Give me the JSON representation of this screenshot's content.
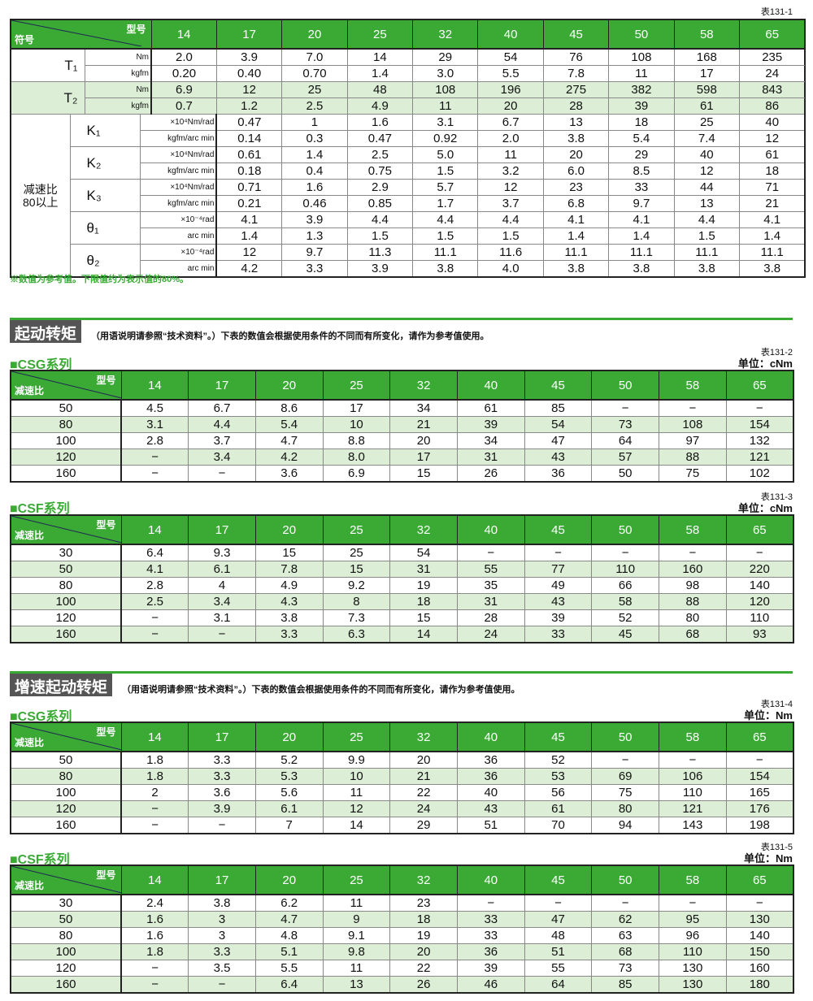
{
  "table1": {
    "id": "表131-1",
    "corner_top": "型号",
    "corner_bottom": "符号",
    "models": [
      "14",
      "17",
      "20",
      "25",
      "32",
      "40",
      "45",
      "50",
      "58",
      "65"
    ],
    "groups": [
      {
        "symbol": "T₁",
        "shaded": false,
        "rows": [
          {
            "unit": "Nm",
            "values": [
              "2.0",
              "3.9",
              "7.0",
              "14",
              "29",
              "54",
              "76",
              "108",
              "168",
              "235"
            ]
          },
          {
            "unit": "kgfm",
            "values": [
              "0.20",
              "0.40",
              "0.70",
              "1.4",
              "3.0",
              "5.5",
              "7.8",
              "11",
              "17",
              "24"
            ]
          }
        ]
      },
      {
        "symbol": "T₂",
        "shaded": true,
        "rows": [
          {
            "unit": "Nm",
            "values": [
              "6.9",
              "12",
              "25",
              "48",
              "108",
              "196",
              "275",
              "382",
              "598",
              "843"
            ]
          },
          {
            "unit": "kgfm",
            "values": [
              "0.7",
              "1.2",
              "2.5",
              "4.9",
              "11",
              "20",
              "28",
              "39",
              "61",
              "86"
            ]
          }
        ]
      },
      {
        "symbol": "K₁",
        "rows": [
          {
            "unit": "×10⁴Nm/rad",
            "values": [
              "0.47",
              "1",
              "1.6",
              "3.1",
              "6.7",
              "13",
              "18",
              "25",
              "40",
              "54"
            ]
          },
          {
            "unit": "kgfm/arc min",
            "values": [
              "0.14",
              "0.3",
              "0.47",
              "0.92",
              "2.0",
              "3.8",
              "5.4",
              "7.4",
              "12",
              "16"
            ]
          }
        ]
      },
      {
        "symbol": "K₂",
        "rows": [
          {
            "unit": "×10⁴Nm/rad",
            "values": [
              "0.61",
              "1.4",
              "2.5",
              "5.0",
              "11",
              "20",
              "29",
              "40",
              "61",
              "88"
            ]
          },
          {
            "unit": "kgfm/arc min",
            "values": [
              "0.18",
              "0.4",
              "0.75",
              "1.5",
              "3.2",
              "6.0",
              "8.5",
              "12",
              "18",
              "26"
            ]
          }
        ]
      },
      {
        "symbol": "K₃",
        "rows": [
          {
            "unit": "×10⁴Nm/rad",
            "values": [
              "0.71",
              "1.6",
              "2.9",
              "5.7",
              "12",
              "23",
              "33",
              "44",
              "71",
              "98"
            ]
          },
          {
            "unit": "kgfm/arc min",
            "values": [
              "0.21",
              "0.46",
              "0.85",
              "1.7",
              "3.7",
              "6.8",
              "9.7",
              "13",
              "21",
              "29"
            ]
          }
        ]
      },
      {
        "symbol": "θ₁",
        "rows": [
          {
            "unit": "×10⁻⁴rad",
            "values": [
              "4.1",
              "3.9",
              "4.4",
              "4.4",
              "4.4",
              "4.1",
              "4.1",
              "4.4",
              "4.1",
              "4.4"
            ]
          },
          {
            "unit": "arc min",
            "values": [
              "1.4",
              "1.3",
              "1.5",
              "1.5",
              "1.5",
              "1.4",
              "1.4",
              "1.5",
              "1.4",
              "1.5"
            ]
          }
        ]
      },
      {
        "symbol": "θ₂",
        "rows": [
          {
            "unit": "×10⁻⁴rad",
            "values": [
              "12",
              "9.7",
              "11.3",
              "11.1",
              "11.6",
              "11.1",
              "11.1",
              "11.1",
              "11.1",
              "11.3"
            ]
          },
          {
            "unit": "arc min",
            "values": [
              "4.2",
              "3.3",
              "3.9",
              "3.8",
              "4.0",
              "3.8",
              "3.8",
              "3.8",
              "3.8",
              "3.9"
            ]
          }
        ]
      }
    ],
    "ratio_label": "减速比\n80以上",
    "note": "※数值为参考值。下限值约为表示值的80%。"
  },
  "section1": {
    "title": "起动转矩",
    "desc": "（用语说明请参照“技术资料”。）下表的数值会根据使用条件的不同而有所变化，请作为参考值使用。"
  },
  "section2": {
    "title": "增速起动转矩",
    "desc": "（用语说明请参照“技术资料”。）下表的数值会根据使用条件的不同而有所变化，请作为参考值使用。"
  },
  "tables": [
    {
      "series": "■CSG系列",
      "id": "表131-2",
      "unit": "单位：cNm",
      "corner_top": "型号",
      "corner_bottom": "减速比",
      "models": [
        "14",
        "17",
        "20",
        "25",
        "32",
        "40",
        "45",
        "50",
        "58",
        "65"
      ],
      "rows": [
        [
          "50",
          "4.5",
          "6.7",
          "8.6",
          "17",
          "34",
          "61",
          "85",
          "−",
          "−",
          "−"
        ],
        [
          "80",
          "3.1",
          "4.4",
          "5.4",
          "10",
          "21",
          "39",
          "54",
          "73",
          "108",
          "154"
        ],
        [
          "100",
          "2.8",
          "3.7",
          "4.7",
          "8.8",
          "20",
          "34",
          "47",
          "64",
          "97",
          "132"
        ],
        [
          "120",
          "−",
          "3.4",
          "4.2",
          "8.0",
          "17",
          "31",
          "43",
          "57",
          "88",
          "121"
        ],
        [
          "160",
          "−",
          "−",
          "3.6",
          "6.9",
          "15",
          "26",
          "36",
          "50",
          "75",
          "102"
        ]
      ]
    },
    {
      "series": "■CSF系列",
      "id": "表131-3",
      "unit": "单位：cNm",
      "corner_top": "型号",
      "corner_bottom": "减速比",
      "models": [
        "14",
        "17",
        "20",
        "25",
        "32",
        "40",
        "45",
        "50",
        "58",
        "65"
      ],
      "rows": [
        [
          "30",
          "6.4",
          "9.3",
          "15",
          "25",
          "54",
          "−",
          "−",
          "−",
          "−",
          "−"
        ],
        [
          "50",
          "4.1",
          "6.1",
          "7.8",
          "15",
          "31",
          "55",
          "77",
          "110",
          "160",
          "220"
        ],
        [
          "80",
          "2.8",
          "4",
          "4.9",
          "9.2",
          "19",
          "35",
          "49",
          "66",
          "98",
          "140"
        ],
        [
          "100",
          "2.5",
          "3.4",
          "4.3",
          "8",
          "18",
          "31",
          "43",
          "58",
          "88",
          "120"
        ],
        [
          "120",
          "−",
          "3.1",
          "3.8",
          "7.3",
          "15",
          "28",
          "39",
          "52",
          "80",
          "110"
        ],
        [
          "160",
          "−",
          "−",
          "3.3",
          "6.3",
          "14",
          "24",
          "33",
          "45",
          "68",
          "93"
        ]
      ]
    },
    {
      "series": "■CSG系列",
      "id": "表131-4",
      "unit": "单位：Nm",
      "corner_top": "型号",
      "corner_bottom": "减速比",
      "models": [
        "14",
        "17",
        "20",
        "25",
        "32",
        "40",
        "45",
        "50",
        "58",
        "65"
      ],
      "rows": [
        [
          "50",
          "1.8",
          "3.3",
          "5.2",
          "9.9",
          "20",
          "36",
          "52",
          "−",
          "−",
          "−"
        ],
        [
          "80",
          "1.8",
          "3.3",
          "5.3",
          "10",
          "21",
          "36",
          "53",
          "69",
          "106",
          "154"
        ],
        [
          "100",
          "2",
          "3.6",
          "5.6",
          "11",
          "22",
          "40",
          "56",
          "75",
          "110",
          "165"
        ],
        [
          "120",
          "−",
          "3.9",
          "6.1",
          "12",
          "24",
          "43",
          "61",
          "80",
          "121",
          "176"
        ],
        [
          "160",
          "−",
          "−",
          "7",
          "14",
          "29",
          "51",
          "70",
          "94",
          "143",
          "198"
        ]
      ]
    },
    {
      "series": "■CSF系列",
      "id": "表131-5",
      "unit": "单位：Nm",
      "corner_top": "型号",
      "corner_bottom": "减速比",
      "models": [
        "14",
        "17",
        "20",
        "25",
        "32",
        "40",
        "45",
        "50",
        "58",
        "65"
      ],
      "rows": [
        [
          "30",
          "2.4",
          "3.8",
          "6.2",
          "11",
          "23",
          "−",
          "−",
          "−",
          "−",
          "−"
        ],
        [
          "50",
          "1.6",
          "3",
          "4.7",
          "9",
          "18",
          "33",
          "47",
          "62",
          "95",
          "130"
        ],
        [
          "80",
          "1.6",
          "3",
          "4.8",
          "9.1",
          "19",
          "33",
          "48",
          "63",
          "96",
          "140"
        ],
        [
          "100",
          "1.8",
          "3.3",
          "5.1",
          "9.8",
          "20",
          "36",
          "51",
          "68",
          "110",
          "150"
        ],
        [
          "120",
          "−",
          "3.5",
          "5.5",
          "11",
          "22",
          "39",
          "55",
          "73",
          "130",
          "160"
        ],
        [
          "160",
          "−",
          "−",
          "6.4",
          "13",
          "26",
          "46",
          "64",
          "85",
          "130",
          "180"
        ]
      ]
    }
  ],
  "colors": {
    "accent": "#3aaa35",
    "shade": "#dcefd6",
    "section_bg": "#555555"
  }
}
